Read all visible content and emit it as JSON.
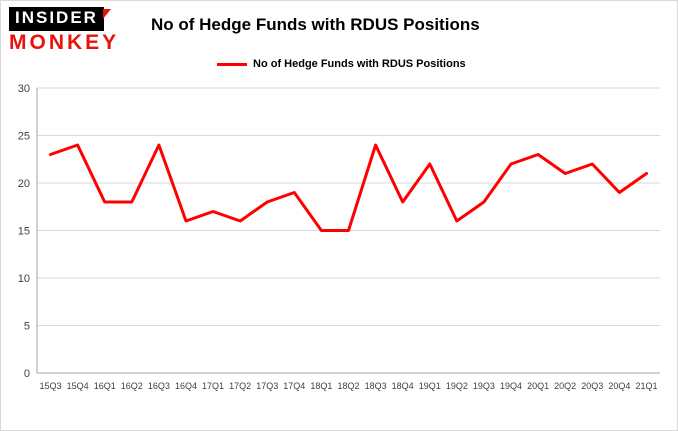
{
  "brand": {
    "line1": "INSIDER",
    "line2": "MONKEY"
  },
  "header": {
    "title": "No of Hedge Funds with RDUS Positions"
  },
  "legend": {
    "label": "No of Hedge Funds with RDUS Positions"
  },
  "colors": {
    "series": "#ff0000",
    "grid": "#d9d9d9",
    "axis": "#a6a6a6",
    "tick_text": "#404040",
    "brand_red": "#e8140c",
    "brand_black": "#000000"
  },
  "chart_data": {
    "type": "line",
    "title": "No of Hedge Funds with RDUS Positions",
    "xlabel": "",
    "ylabel": "",
    "ylim": [
      0,
      30
    ],
    "yticks": [
      0,
      5,
      10,
      15,
      20,
      25,
      30
    ],
    "grid": true,
    "legend_position": "top",
    "categories": [
      "15Q3",
      "15Q4",
      "16Q1",
      "16Q2",
      "16Q3",
      "16Q4",
      "17Q1",
      "17Q2",
      "17Q3",
      "17Q4",
      "18Q1",
      "18Q2",
      "18Q3",
      "18Q4",
      "19Q1",
      "19Q2",
      "19Q3",
      "19Q4",
      "20Q1",
      "20Q2",
      "20Q3",
      "20Q4",
      "21Q1"
    ],
    "series": [
      {
        "name": "No of Hedge Funds with RDUS Positions",
        "color": "#ff0000",
        "values": [
          23,
          24,
          18,
          18,
          24,
          16,
          17,
          16,
          18,
          19,
          15,
          15,
          24,
          18,
          22,
          16,
          18,
          22,
          23,
          21,
          22,
          19,
          21
        ]
      }
    ]
  }
}
